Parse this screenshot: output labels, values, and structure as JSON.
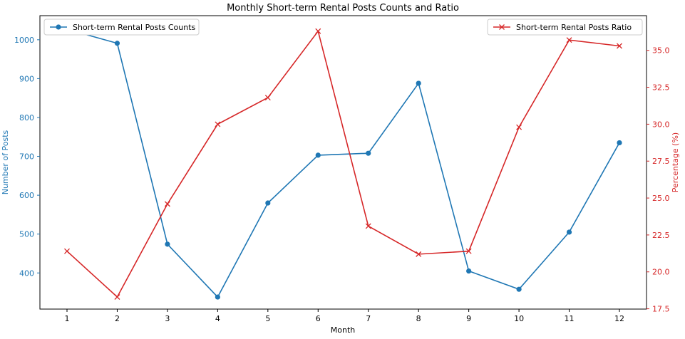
{
  "chart_data": {
    "type": "line",
    "title": "Monthly Short-term Rental Posts Counts and Ratio",
    "xlabel": "Month",
    "x": [
      1,
      2,
      3,
      4,
      5,
      6,
      7,
      8,
      9,
      10,
      11,
      12
    ],
    "x_ticks": [
      "1",
      "2",
      "3",
      "4",
      "5",
      "6",
      "7",
      "8",
      "9",
      "10",
      "11",
      "12"
    ],
    "left_axis": {
      "label": "Number of Posts",
      "color": "#1f77b4",
      "range": [
        307,
        1062
      ],
      "ticks": [
        "400",
        "500",
        "600",
        "700",
        "800",
        "900",
        "1000"
      ]
    },
    "right_axis": {
      "label": "Percentage (%)",
      "color": "#d62728",
      "range": [
        17.48,
        37.35
      ],
      "ticks": [
        "17.5",
        "20.0",
        "22.5",
        "25.0",
        "27.5",
        "30.0",
        "32.5",
        "35.0"
      ]
    },
    "series": [
      {
        "name": "Short-term Rental Posts Counts",
        "axis": "left",
        "color": "#1f77b4",
        "marker": "circle",
        "values": [
          1027,
          991,
          474,
          338,
          580,
          703,
          708,
          888,
          405,
          358,
          505,
          735
        ]
      },
      {
        "name": "Short-term Rental Posts Ratio",
        "axis": "right",
        "color": "#d62728",
        "marker": "x",
        "values": [
          21.4,
          18.3,
          24.6,
          30.0,
          31.8,
          36.3,
          23.1,
          21.2,
          21.4,
          29.8,
          35.7,
          35.3
        ]
      }
    ],
    "legends": {
      "left": "upper-left",
      "right": "upper-right"
    },
    "grid": false
  }
}
